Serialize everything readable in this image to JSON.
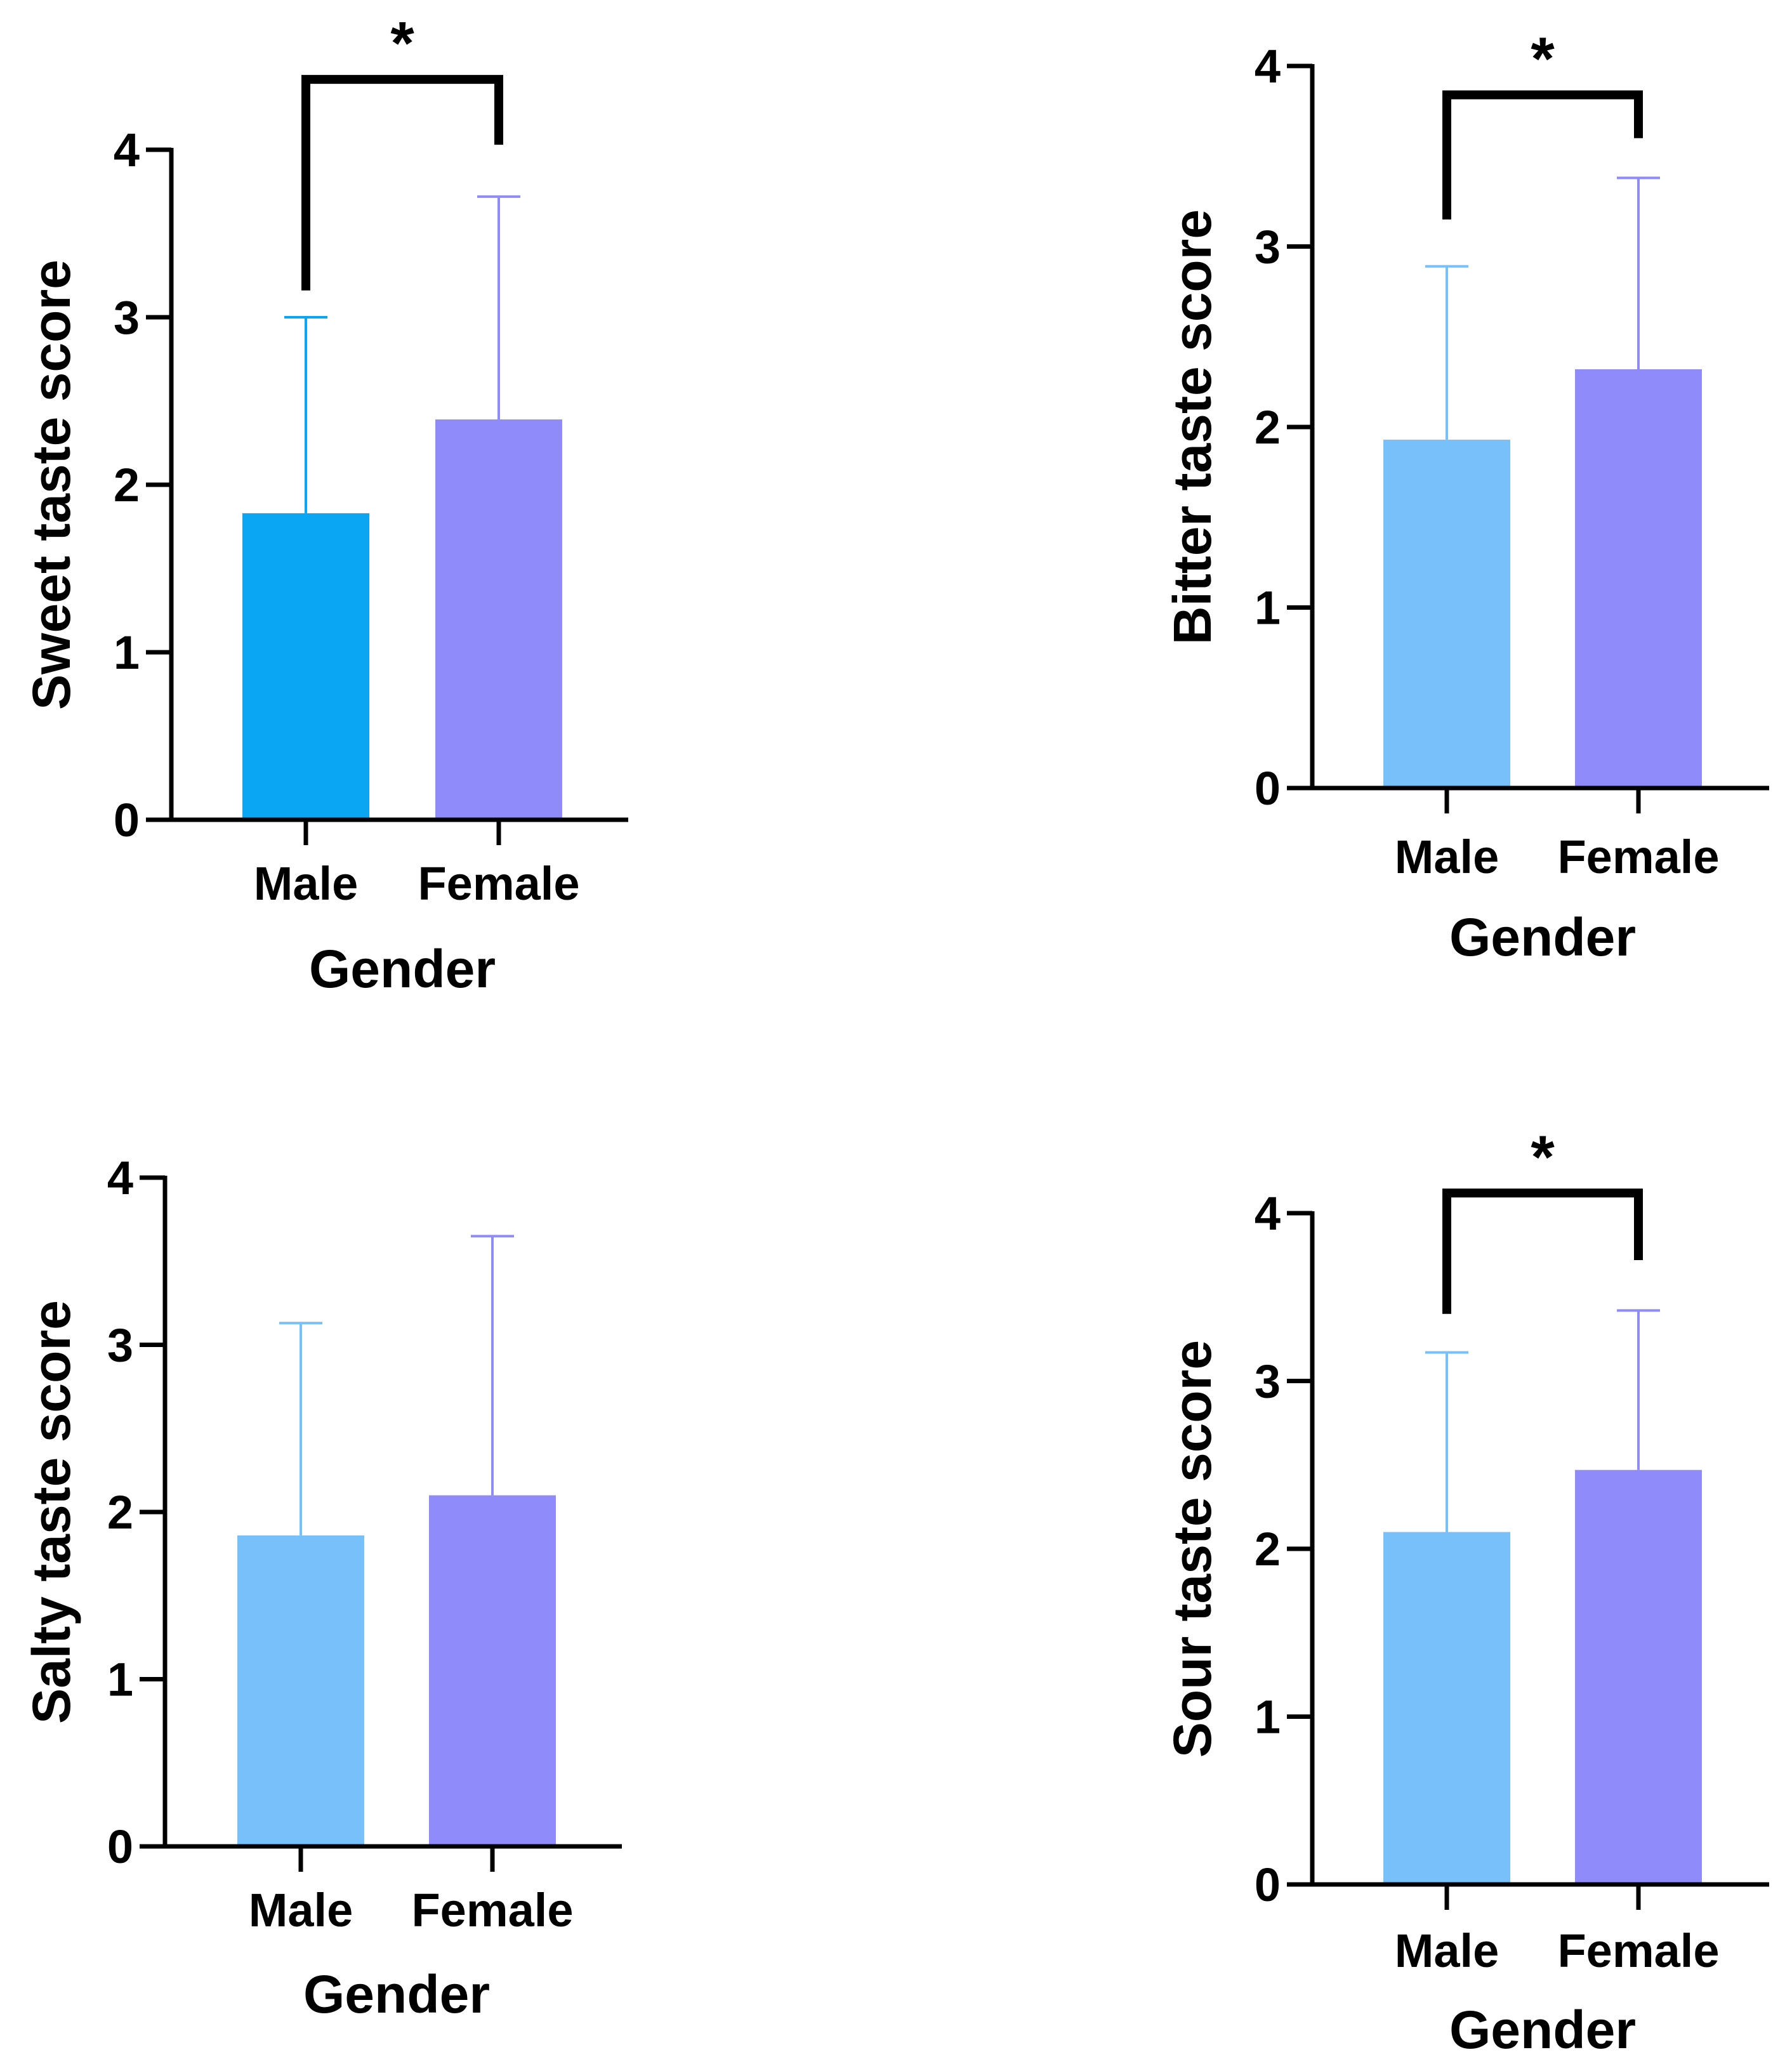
{
  "chart_data": [
    {
      "type": "bar",
      "id": "sweet",
      "title": "",
      "xlabel": "Gender",
      "ylabel": "Sweet taste score",
      "categories": [
        "Male",
        "Female"
      ],
      "values": [
        1.83,
        2.39
      ],
      "error_upper": [
        3.0,
        3.72
      ],
      "ylim": [
        0,
        4
      ],
      "yticks": [
        "0",
        "1",
        "2",
        "3",
        "4"
      ],
      "colors": [
        "#0aa6f4",
        "#8f8bfb"
      ],
      "error_colors": [
        "#0aa6f4",
        "#8f8bfb"
      ],
      "significance": {
        "from": 0,
        "to": 1,
        "label": "*",
        "y": 4.42,
        "left_drop": 3.16,
        "right_drop": 4.03
      }
    },
    {
      "type": "bar",
      "id": "bitter",
      "title": "",
      "xlabel": "Gender",
      "ylabel": "Bitter taste score",
      "categories": [
        "Male",
        "Female"
      ],
      "values": [
        1.93,
        2.32
      ],
      "error_upper": [
        2.89,
        3.38
      ],
      "ylim": [
        0,
        4
      ],
      "yticks": [
        "0",
        "1",
        "2",
        "3",
        "4"
      ],
      "colors": [
        "#77c0f9",
        "#8f8bfb"
      ],
      "error_colors": [
        "#77c0f9",
        "#8f8bfb"
      ],
      "significance": {
        "from": 0,
        "to": 1,
        "label": "*",
        "y": 3.84,
        "left_drop": 3.15,
        "right_drop": 3.6
      }
    },
    {
      "type": "bar",
      "id": "salty",
      "title": "",
      "xlabel": "Gender",
      "ylabel": "Salty taste score",
      "categories": [
        "Male",
        "Female"
      ],
      "values": [
        1.86,
        2.1
      ],
      "error_upper": [
        3.13,
        3.65
      ],
      "ylim": [
        0,
        4
      ],
      "yticks": [
        "0",
        "1",
        "2",
        "3",
        "4"
      ],
      "colors": [
        "#77c0f9",
        "#8f8bfb"
      ],
      "error_colors": [
        "#77c0f9",
        "#8f8bfb"
      ],
      "significance": null
    },
    {
      "type": "bar",
      "id": "sour",
      "title": "",
      "xlabel": "Gender",
      "ylabel": "Sour taste score",
      "categories": [
        "Male",
        "Female"
      ],
      "values": [
        2.1,
        2.47
      ],
      "error_upper": [
        3.17,
        3.42
      ],
      "ylim": [
        0,
        4
      ],
      "yticks": [
        "0",
        "1",
        "2",
        "3",
        "4"
      ],
      "colors": [
        "#77c0f9",
        "#8f8bfb"
      ],
      "error_colors": [
        "#77c0f9",
        "#8f8bfb"
      ],
      "significance": {
        "from": 0,
        "to": 1,
        "label": "*",
        "y": 4.12,
        "left_drop": 3.4,
        "right_drop": 3.72
      }
    }
  ]
}
